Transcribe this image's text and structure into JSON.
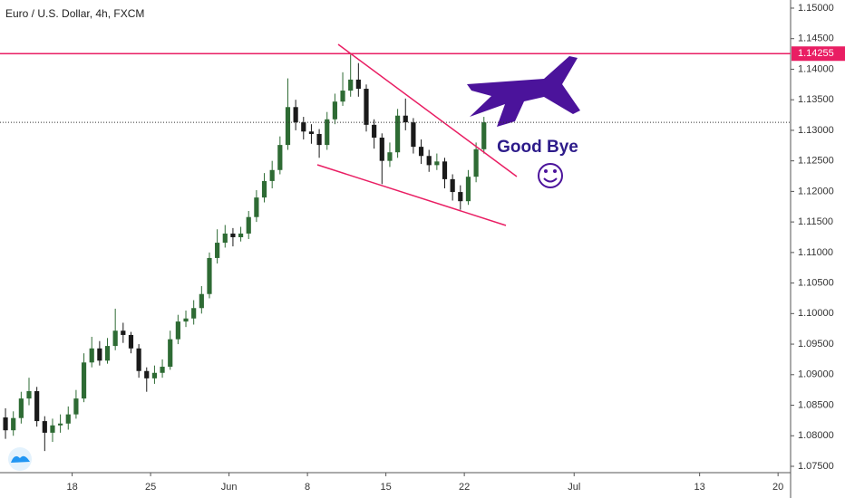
{
  "chart_data": {
    "type": "candlestick",
    "title": "Euro / U.S. Dollar, 4h, FXCM",
    "annotation": "Good Bye",
    "up_color": "#2e6b34",
    "down_color": "#1a1a1a",
    "x": [
      0.75,
      1.25,
      1.75,
      2.25,
      2.75,
      3.25,
      3.75,
      4.25,
      4.75,
      5.25,
      5.75,
      6.25,
      6.75,
      7.25,
      7.75,
      8.25,
      8.75,
      9.25,
      9.75,
      10.25,
      10.75,
      11.25,
      11.75,
      12.25,
      12.75,
      13.25,
      13.75,
      14.25,
      14.75,
      15.25,
      15.75,
      16.25,
      16.75,
      17.25,
      17.75,
      18.25,
      18.75,
      19.25,
      19.75,
      20.25,
      20.75,
      21.25,
      21.75,
      22.25,
      22.75,
      23.25,
      23.75,
      24.25,
      24.75,
      25.25,
      25.75,
      26.25,
      26.75,
      27.25,
      27.75,
      28.25,
      28.75,
      29.25,
      29.75,
      30.25,
      30.75,
      31.25
    ],
    "open": [
      1.083,
      1.0809,
      1.0829,
      1.0861,
      1.0873,
      1.0824,
      1.0805,
      1.0817,
      1.082,
      1.0835,
      1.0861,
      1.092,
      1.0943,
      1.0923,
      1.0947,
      1.0972,
      1.0965,
      1.0943,
      1.0906,
      1.0894,
      1.0903,
      1.0913,
      1.0958,
      1.0987,
      1.0992,
      1.1009,
      1.1032,
      1.1091,
      1.1116,
      1.1131,
      1.1125,
      1.1131,
      1.1158,
      1.119,
      1.1217,
      1.1235,
      1.1276,
      1.1338,
      1.1313,
      1.1298,
      1.1294,
      1.1276,
      1.1318,
      1.1347,
      1.1365,
      1.1383,
      1.1368,
      1.1309,
      1.1288,
      1.125,
      1.1264,
      1.1324,
      1.1313,
      1.1273,
      1.1258,
      1.1243,
      1.1249,
      1.122,
      1.1199,
      1.1184,
      1.1224,
      1.1269
    ],
    "high": [
      1.0845,
      1.084,
      1.0872,
      1.0895,
      1.088,
      1.0832,
      1.0828,
      1.0835,
      1.0848,
      1.0875,
      1.0935,
      1.0962,
      1.0955,
      1.096,
      1.1008,
      1.0985,
      1.097,
      1.095,
      1.0912,
      1.0915,
      1.0925,
      1.0972,
      1.0998,
      1.1005,
      1.1022,
      1.1045,
      1.11,
      1.1138,
      1.1145,
      1.114,
      1.1142,
      1.1168,
      1.1202,
      1.123,
      1.125,
      1.129,
      1.1385,
      1.135,
      1.1322,
      1.131,
      1.1302,
      1.133,
      1.136,
      1.1395,
      1.1424,
      1.141,
      1.1375,
      1.1318,
      1.1295,
      1.128,
      1.1335,
      1.1352,
      1.132,
      1.1285,
      1.1268,
      1.1262,
      1.1255,
      1.1228,
      1.121,
      1.1235,
      1.128,
      1.1322
    ],
    "low": [
      1.0795,
      1.08,
      1.082,
      1.085,
      1.0815,
      1.0775,
      1.079,
      1.0805,
      1.081,
      1.0828,
      1.0855,
      1.0912,
      1.0915,
      1.0918,
      1.094,
      1.0952,
      1.0935,
      1.0895,
      1.0872,
      1.0885,
      1.0895,
      1.0908,
      1.095,
      1.0978,
      1.0982,
      1.1,
      1.1025,
      1.1082,
      1.1108,
      1.111,
      1.1118,
      1.1122,
      1.115,
      1.1182,
      1.1205,
      1.1228,
      1.1268,
      1.13,
      1.1285,
      1.1278,
      1.1255,
      1.1268,
      1.131,
      1.134,
      1.1355,
      1.1355,
      1.1298,
      1.127,
      1.1212,
      1.124,
      1.1255,
      1.13,
      1.1262,
      1.1245,
      1.1232,
      1.1235,
      1.1205,
      1.1185,
      1.117,
      1.1178,
      1.1215,
      1.1262
    ],
    "close": [
      1.0809,
      1.0829,
      1.0861,
      1.0873,
      1.0824,
      1.0805,
      1.0817,
      1.082,
      1.0835,
      1.0861,
      1.092,
      1.0943,
      1.0923,
      1.0947,
      1.0972,
      1.0965,
      1.0943,
      1.0906,
      1.0894,
      1.0903,
      1.0913,
      1.0958,
      1.0987,
      1.0992,
      1.1009,
      1.1032,
      1.1091,
      1.1116,
      1.1131,
      1.1125,
      1.1131,
      1.1158,
      1.119,
      1.1217,
      1.1235,
      1.1276,
      1.1338,
      1.1313,
      1.1298,
      1.1294,
      1.1276,
      1.1318,
      1.1347,
      1.1365,
      1.1383,
      1.1368,
      1.1309,
      1.1288,
      1.125,
      1.1264,
      1.1324,
      1.1313,
      1.1273,
      1.1258,
      1.1243,
      1.1249,
      1.122,
      1.1199,
      1.1184,
      1.1224,
      1.1269,
      1.1313
    ],
    "xlim": [
      0.4,
      50.8
    ],
    "xticks": [
      {
        "value": 5,
        "label": "18"
      },
      {
        "value": 10,
        "label": "25"
      },
      {
        "value": 15,
        "label": "Jun"
      },
      {
        "value": 20,
        "label": "8"
      },
      {
        "value": 25,
        "label": "15"
      },
      {
        "value": 30,
        "label": "22"
      },
      {
        "value": 37,
        "label": "Jul"
      },
      {
        "value": 45,
        "label": "13"
      },
      {
        "value": 50,
        "label": "20"
      }
    ],
    "ylim": [
      1.07426,
      1.15133
    ],
    "yticks": [
      {
        "value": 1.15,
        "label": "1.15000"
      },
      {
        "value": 1.145,
        "label": "1.14500"
      },
      {
        "value": 1.14,
        "label": "1.14000"
      },
      {
        "value": 1.135,
        "label": "1.13500"
      },
      {
        "value": 1.13,
        "label": "1.13000"
      },
      {
        "value": 1.125,
        "label": "1.12500"
      },
      {
        "value": 1.12,
        "label": "1.12000"
      },
      {
        "value": 1.115,
        "label": "1.11500"
      },
      {
        "value": 1.11,
        "label": "1.11000"
      },
      {
        "value": 1.105,
        "label": "1.10500"
      },
      {
        "value": 1.1,
        "label": "1.10000"
      },
      {
        "value": 1.095,
        "label": "1.09500"
      },
      {
        "value": 1.09,
        "label": "1.09000"
      },
      {
        "value": 1.085,
        "label": "1.08500"
      },
      {
        "value": 1.08,
        "label": "1.08000"
      },
      {
        "value": 1.075,
        "label": "1.07500"
      }
    ],
    "hline": {
      "value": 1.14255,
      "label": "1.14255",
      "color": "#e91e63"
    }
  }
}
